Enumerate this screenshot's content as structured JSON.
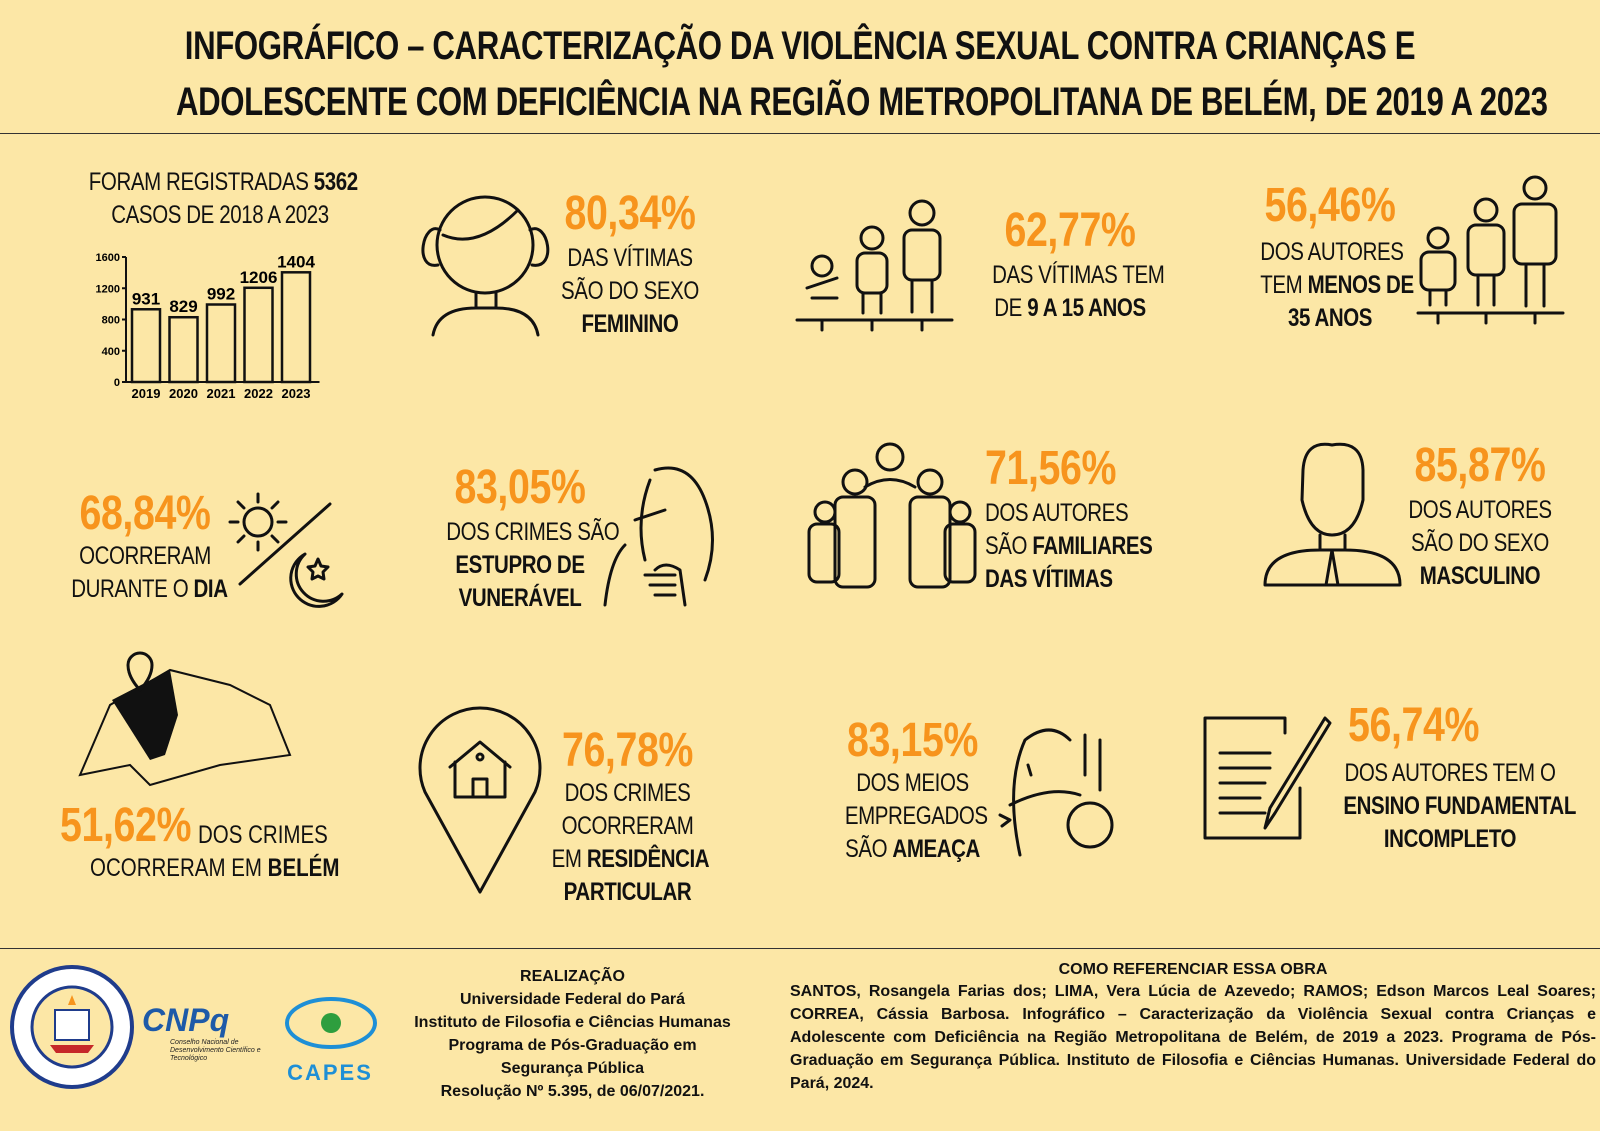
{
  "title": {
    "line1": "INFOGRÁFICO – CARACTERIZAÇÃO DA VIOLÊNCIA SEXUAL CONTRA CRIANÇAS E",
    "line2": "ADOLESCENTE COM DEFICIÊNCIA NA REGIÃO METROPOLITANA DE BELÉM, DE 2019 A 2023"
  },
  "colors": {
    "background": "#FCE7A6",
    "accent": "#F7941D"
  },
  "cases": {
    "line1_prefix": "FORAM REGISTRADAS",
    "total": "5362",
    "line2": "CASOS DE 2018 A 2023"
  },
  "chart_data": {
    "type": "bar",
    "categories": [
      "2019",
      "2020",
      "2021",
      "2022",
      "2023"
    ],
    "values": [
      931,
      829,
      992,
      1206,
      1404
    ],
    "yticks": [
      "0",
      "400",
      "800",
      "1200",
      "1600"
    ],
    "ylim": [
      0,
      1600
    ],
    "title": "",
    "xlabel": "",
    "ylabel": ""
  },
  "stats": [
    {
      "pct": "80,34%",
      "l1": "DAS VÍTIMAS",
      "l2": "SÃO DO SEXO",
      "bold": "FEMININO"
    },
    {
      "pct": "62,77%",
      "l1": "DAS VÍTIMAS TEM",
      "l2": "DE",
      "bold": "9 A 15 ANOS"
    },
    {
      "pct": "56,46%",
      "l1": "DOS AUTORES",
      "l2": "TEM",
      "bold": "MENOS DE",
      "bold2": "35 ANOS"
    },
    {
      "pct": "68,84%",
      "l1": "OCORRERAM",
      "l2": "DURANTE O",
      "bold": "DIA"
    },
    {
      "pct": "83,05%",
      "l1": "DOS CRIMES  SÃO",
      "bold": "ESTUPRO DE",
      "bold2": "VUNERÁVEL"
    },
    {
      "pct": "71,56%",
      "l1": "DOS AUTORES",
      "l2": "SÃO",
      "bold": "FAMILIARES",
      "bold2": "DAS VÍTIMAS"
    },
    {
      "pct": "85,87%",
      "l1": "DOS AUTORES",
      "l2": "SÃO  DO SEXO",
      "bold": "MASCULINO"
    },
    {
      "pct": "51,62%",
      "l1": "DOS CRIMES",
      "l2": "OCORRERAM  EM",
      "bold": "BELÉM"
    },
    {
      "pct": "76,78%",
      "l1": "DOS CRIMES",
      "l2": "OCORRERAM",
      "l3": "EM",
      "bold": "RESIDÊNCIA",
      "bold2": "PARTICULAR"
    },
    {
      "pct": "83,15%",
      "l1": "DOS MEIOS",
      "l2": "EMPREGADOS",
      "l3": "SÃO",
      "bold": "AMEAÇA"
    },
    {
      "pct": "56,74%",
      "l1": "DOS AUTORES TEM O",
      "bold": "ENSINO FUNDAMENTAL",
      "bold2": "INCOMPLETO"
    }
  ],
  "footer": {
    "heading": "REALIZAÇÃO",
    "lines": [
      "Universidade Federal do Pará",
      "Instituto de Filosofia e Ciências Humanas",
      "Programa de Pós-Graduação em",
      "Segurança Pública",
      "Resolução Nº 5.395, de 06/07/2021."
    ],
    "ref_heading": "COMO REFERENCIAR ESSA OBRA",
    "ref_text": "SANTOS, Rosangela Farias dos; LIMA, Vera Lúcia de Azevedo; RAMOS; Edson Marcos Leal Soares; CORREA, Cássia Barbosa. Infográfico – Caracterização da Violência Sexual contra Crianças e Adolescente com Deficiência na Região Metropolitana de Belém, de 2019 a 2023. Programa de Pós-Graduação em Segurança Pública. Instituto de Filosofia e Ciências Humanas. Universidade Federal do Pará, 2024.",
    "logos": {
      "ufpa": "UNIVERSIDADE FEDERAL DO PARÁ · PROGRAMA DE PÓS-GRADUAÇÃO EM SEGURANÇA PÚBLICA",
      "cnpq": "CNPq",
      "cnpq_sub": "Conselho Nacional de Desenvolvimento Científico e Tecnológico",
      "capes": "CAPES"
    }
  }
}
